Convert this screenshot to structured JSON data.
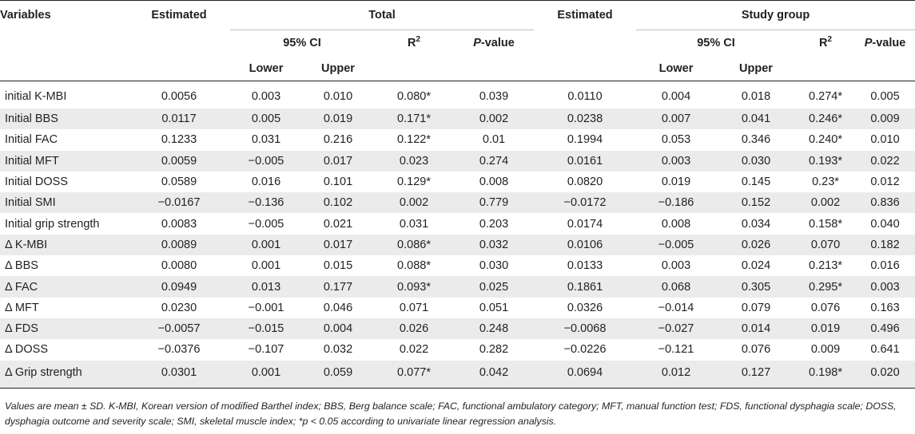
{
  "header": {
    "variables": "Variables",
    "estimated_total": "Estimated",
    "total": "Total",
    "estimated_study": "Estimated",
    "study_group": "Study group",
    "ci_total": "95% CI",
    "ci_study": "95% CI",
    "r2": "R",
    "r2_sup": "2",
    "p": "P",
    "p_suffix": "-value",
    "lower": "Lower",
    "upper": "Upper"
  },
  "rows": [
    {
      "variable": "initial K-MBI",
      "t_est": "0.0056",
      "t_lower": "0.003",
      "t_upper": "0.010",
      "t_r2": "0.080*",
      "t_p": "0.039",
      "s_est": "0.0110",
      "s_lower": "0.004",
      "s_upper": "0.018",
      "s_r2": "0.274*",
      "s_p": "0.005"
    },
    {
      "variable": "Initial BBS",
      "t_est": "0.0117",
      "t_lower": "0.005",
      "t_upper": "0.019",
      "t_r2": "0.171*",
      "t_p": "0.002",
      "s_est": "0.0238",
      "s_lower": "0.007",
      "s_upper": "0.041",
      "s_r2": "0.246*",
      "s_p": "0.009"
    },
    {
      "variable": "Initial FAC",
      "t_est": "0.1233",
      "t_lower": "0.031",
      "t_upper": "0.216",
      "t_r2": "0.122*",
      "t_p": "0.01",
      "s_est": "0.1994",
      "s_lower": "0.053",
      "s_upper": "0.346",
      "s_r2": "0.240*",
      "s_p": "0.010"
    },
    {
      "variable": "Initial MFT",
      "t_est": "0.0059",
      "t_lower": "−0.005",
      "t_upper": "0.017",
      "t_r2": "0.023",
      "t_p": "0.274",
      "s_est": "0.0161",
      "s_lower": "0.003",
      "s_upper": "0.030",
      "s_r2": "0.193*",
      "s_p": "0.022"
    },
    {
      "variable": "Initial DOSS",
      "t_est": "0.0589",
      "t_lower": "0.016",
      "t_upper": "0.101",
      "t_r2": "0.129*",
      "t_p": "0.008",
      "s_est": "0.0820",
      "s_lower": "0.019",
      "s_upper": "0.145",
      "s_r2": "0.23*",
      "s_p": "0.012"
    },
    {
      "variable": "Initial SMI",
      "t_est": "−0.0167",
      "t_lower": "−0.136",
      "t_upper": "0.102",
      "t_r2": "0.002",
      "t_p": "0.779",
      "s_est": "−0.0172",
      "s_lower": "−0.186",
      "s_upper": "0.152",
      "s_r2": "0.002",
      "s_p": "0.836"
    },
    {
      "variable": "Initial grip strength",
      "t_est": "0.0083",
      "t_lower": "−0.005",
      "t_upper": "0.021",
      "t_r2": "0.031",
      "t_p": "0.203",
      "s_est": "0.0174",
      "s_lower": "0.008",
      "s_upper": "0.034",
      "s_r2": "0.158*",
      "s_p": "0.040"
    },
    {
      "variable": "Δ  K-MBI",
      "t_est": "0.0089",
      "t_lower": "0.001",
      "t_upper": "0.017",
      "t_r2": "0.086*",
      "t_p": "0.032",
      "s_est": "0.0106",
      "s_lower": "−0.005",
      "s_upper": "0.026",
      "s_r2": "0.070",
      "s_p": "0.182"
    },
    {
      "variable": "Δ  BBS",
      "t_est": "0.0080",
      "t_lower": "0.001",
      "t_upper": "0.015",
      "t_r2": "0.088*",
      "t_p": "0.030",
      "s_est": "0.0133",
      "s_lower": "0.003",
      "s_upper": "0.024",
      "s_r2": "0.213*",
      "s_p": "0.016"
    },
    {
      "variable": "Δ  FAC",
      "t_est": "0.0949",
      "t_lower": "0.013",
      "t_upper": "0.177",
      "t_r2": "0.093*",
      "t_p": "0.025",
      "s_est": "0.1861",
      "s_lower": "0.068",
      "s_upper": "0.305",
      "s_r2": "0.295*",
      "s_p": "0.003"
    },
    {
      "variable": "Δ  MFT",
      "t_est": "0.0230",
      "t_lower": "−0.001",
      "t_upper": "0.046",
      "t_r2": "0.071",
      "t_p": "0.051",
      "s_est": "0.0326",
      "s_lower": "−0.014",
      "s_upper": "0.079",
      "s_r2": "0.076",
      "s_p": "0.163"
    },
    {
      "variable": "Δ  FDS",
      "t_est": "−0.0057",
      "t_lower": "−0.015",
      "t_upper": "0.004",
      "t_r2": "0.026",
      "t_p": "0.248",
      "s_est": "−0.0068",
      "s_lower": "−0.027",
      "s_upper": "0.014",
      "s_r2": "0.019",
      "s_p": "0.496"
    },
    {
      "variable": "Δ  DOSS",
      "t_est": "−0.0376",
      "t_lower": "−0.107",
      "t_upper": "0.032",
      "t_r2": "0.022",
      "t_p": "0.282",
      "s_est": "−0.0226",
      "s_lower": "−0.121",
      "s_upper": "0.076",
      "s_r2": "0.009",
      "s_p": "0.641"
    },
    {
      "variable": "Δ  Grip strength",
      "t_est": "0.0301",
      "t_lower": "0.001",
      "t_upper": "0.059",
      "t_r2": "0.077*",
      "t_p": "0.042",
      "s_est": "0.0694",
      "s_lower": "0.012",
      "s_upper": "0.127",
      "s_r2": "0.198*",
      "s_p": "0.020"
    }
  ],
  "footnote": "Values are mean ± SD. K-MBI, Korean version of modified Barthel index; BBS, Berg balance scale; FAC, functional ambulatory category; MFT, manual function test; FDS, functional dysphagia scale; DOSS, dysphagia outcome and severity scale; SMI, skeletal muscle index; *p < 0.05 according to univariate linear regression analysis."
}
